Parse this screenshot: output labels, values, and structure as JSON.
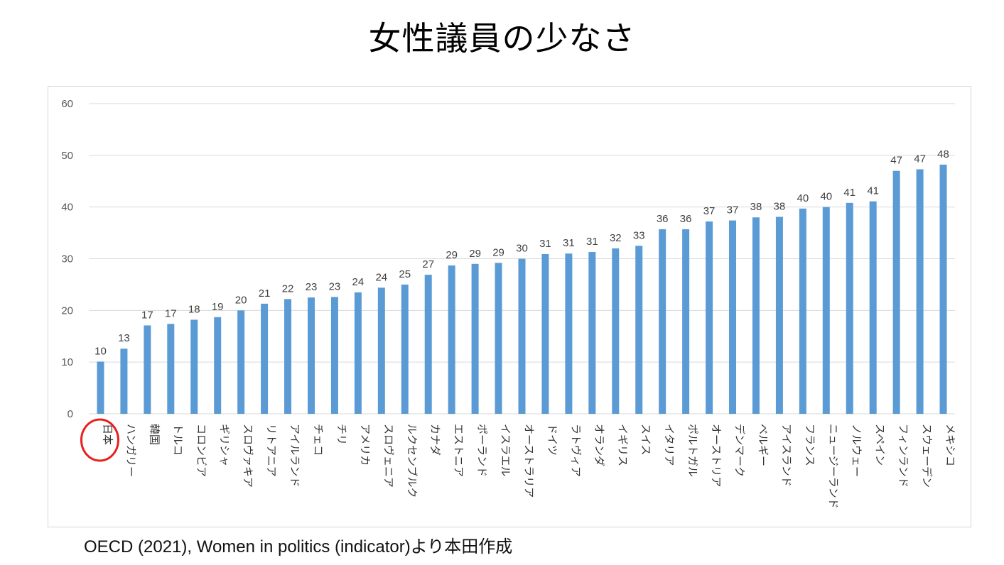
{
  "title": "女性議員の少なさ",
  "source": "OECD (2021), Women in politics (indicator)より本田作成",
  "colors": {
    "bar": "#5b9bd5",
    "grid": "#d9d9d9",
    "highlight": "#e8201f"
  },
  "chart_data": {
    "type": "bar",
    "title": "",
    "xlabel": "",
    "ylabel": "",
    "ylim": [
      0,
      60
    ],
    "yticks": [
      0,
      10,
      20,
      30,
      40,
      50,
      60
    ],
    "grid": true,
    "highlighted_category": "日本",
    "categories": [
      "日本",
      "ハンガリー",
      "韓国",
      "トルコ",
      "コロンビア",
      "ギリシャ",
      "スロヴァキア",
      "リトアニア",
      "アイルランド",
      "チェコ",
      "チリ",
      "アメリカ",
      "スロヴェニア",
      "ルクセンブルク",
      "カナダ",
      "エストニア",
      "ポーランド",
      "イスラエル",
      "オーストラリア",
      "ドイツ",
      "ラトヴィア",
      "オランダ",
      "イギリス",
      "スイス",
      "イタリア",
      "ポルトガル",
      "オーストリア",
      "デンマーク",
      "ベルギー",
      "アイスランド",
      "フランス",
      "ニュージーランド",
      "ノルウェー",
      "スペイン",
      "フィンランド",
      "スウェーデン",
      "メキシコ"
    ],
    "values": [
      10.1,
      12.6,
      17.1,
      17.4,
      18.2,
      18.7,
      20.0,
      21.3,
      22.2,
      22.5,
      22.6,
      23.5,
      24.4,
      25.0,
      26.9,
      28.7,
      29.0,
      29.2,
      30.0,
      30.9,
      31.0,
      31.3,
      32.0,
      32.5,
      35.7,
      35.7,
      37.2,
      37.4,
      38.0,
      38.1,
      39.7,
      40.0,
      40.8,
      41.1,
      47.0,
      47.3,
      48.2
    ],
    "data_labels": [
      "10",
      "13",
      "17",
      "17",
      "18",
      "19",
      "20",
      "21",
      "22",
      "23",
      "23",
      "24",
      "24",
      "25",
      "27",
      "29",
      "29",
      "29",
      "30",
      "31",
      "31",
      "31",
      "32",
      "33",
      "36",
      "36",
      "37",
      "37",
      "38",
      "38",
      "40",
      "40",
      "41",
      "41",
      "47",
      "47",
      "48"
    ]
  }
}
